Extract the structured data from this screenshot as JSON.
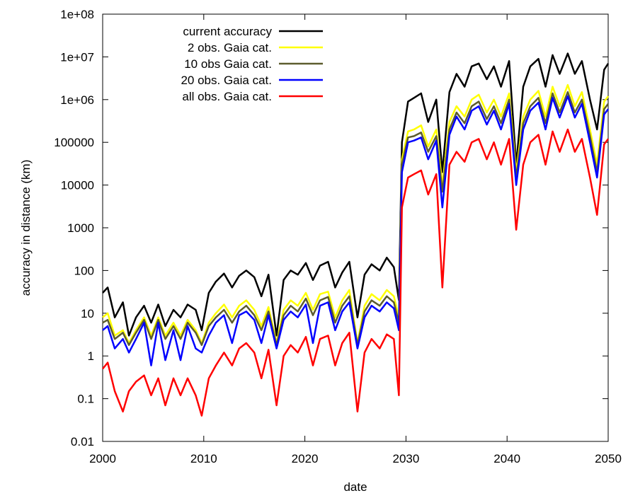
{
  "chart_data": {
    "type": "line",
    "title": "",
    "xlabel": "date",
    "ylabel": "accuracy in distance (km)",
    "xlim": [
      2000,
      2050
    ],
    "ylim": [
      0.01,
      100000000
    ],
    "yscale": "log",
    "grid": false,
    "legend_position": "top-left",
    "x_ticks": [
      "2000",
      "2010",
      "2020",
      "2030",
      "2040",
      "2050"
    ],
    "y_ticks": [
      "0.01",
      "0.1",
      "1",
      "10",
      "100",
      "1000",
      "10000",
      "100000",
      "1e+06",
      "1e+07",
      "1e+08"
    ],
    "series": [
      {
        "name": "current accuracy",
        "color": "#000000",
        "x": [
          2000,
          2000.5,
          2001.2,
          2002,
          2002.6,
          2003.3,
          2004.1,
          2004.8,
          2005.5,
          2006.2,
          2007,
          2007.7,
          2008.4,
          2009.2,
          2009.8,
          2010.5,
          2011.2,
          2012,
          2012.8,
          2013.5,
          2014.2,
          2015,
          2015.7,
          2016.4,
          2017.2,
          2017.9,
          2018.6,
          2019.3,
          2020.1,
          2020.8,
          2021.5,
          2022.3,
          2023,
          2023.7,
          2024.4,
          2025.2,
          2025.9,
          2026.6,
          2027.4,
          2028.1,
          2028.8,
          2029.3,
          2029.6,
          2030.2,
          2030.8,
          2031.5,
          2032.2,
          2033,
          2033.6,
          2034.3,
          2035,
          2035.8,
          2036.5,
          2037.2,
          2038,
          2038.7,
          2039.4,
          2040.2,
          2040.9,
          2041.6,
          2042.3,
          2043.1,
          2043.8,
          2044.5,
          2045.2,
          2046,
          2046.7,
          2047.4,
          2048.2,
          2048.9,
          2049.6,
          2050
        ],
        "y": [
          30,
          40,
          8,
          18,
          3,
          8,
          15,
          6,
          16,
          5,
          12,
          8,
          16,
          12,
          4,
          30,
          55,
          85,
          40,
          75,
          100,
          70,
          25,
          80,
          3,
          60,
          100,
          80,
          150,
          60,
          130,
          160,
          40,
          90,
          160,
          8,
          80,
          140,
          100,
          200,
          120,
          20,
          100000,
          900000,
          1100000,
          1400000,
          300000,
          1000000,
          20000,
          1500000,
          4000000,
          2000000,
          6000000,
          7000000,
          3000000,
          6000000,
          2000000,
          8000000,
          30000,
          2000000,
          6000000,
          9000000,
          2000000,
          11000000,
          4000000,
          12000000,
          4000000,
          8000000,
          1000000,
          200000,
          5000000,
          7000000
        ]
      },
      {
        "name": "2 obs. Gaia cat.",
        "color": "#ffff00",
        "x": [
          2000,
          2000.5,
          2001.2,
          2002,
          2002.6,
          2003.3,
          2004.1,
          2004.8,
          2005.5,
          2006.2,
          2007,
          2007.7,
          2008.4,
          2009.2,
          2009.8,
          2010.5,
          2011.2,
          2012,
          2012.8,
          2013.5,
          2014.2,
          2015,
          2015.7,
          2016.4,
          2017.2,
          2017.9,
          2018.6,
          2019.3,
          2020.1,
          2020.8,
          2021.5,
          2022.3,
          2023,
          2023.7,
          2024.4,
          2025.2,
          2025.9,
          2026.6,
          2027.4,
          2028.1,
          2028.8,
          2029.3,
          2029.6,
          2030.2,
          2030.8,
          2031.5,
          2032.2,
          2033,
          2033.6,
          2034.3,
          2035,
          2035.8,
          2036.5,
          2037.2,
          2038,
          2038.7,
          2039.4,
          2040.2,
          2040.9,
          2041.6,
          2042.3,
          2043.1,
          2043.8,
          2044.5,
          2045.2,
          2046,
          2046.7,
          2047.4,
          2048.2,
          2048.9,
          2049.6,
          2050
        ],
        "y": [
          8,
          10,
          3,
          4,
          2,
          4,
          8,
          3,
          8,
          3,
          6,
          3,
          7,
          4,
          2,
          6,
          10,
          16,
          8,
          15,
          20,
          12,
          5,
          14,
          2,
          12,
          20,
          15,
          30,
          12,
          28,
          32,
          8,
          20,
          35,
          2,
          15,
          28,
          20,
          35,
          25,
          8,
          40000,
          180000,
          200000,
          250000,
          80000,
          200000,
          10000,
          300000,
          700000,
          400000,
          1000000,
          1300000,
          500000,
          1000000,
          400000,
          1400000,
          20000,
          400000,
          1000000,
          1600000,
          400000,
          2000000,
          700000,
          2200000,
          700000,
          1500000,
          200000,
          30000,
          900000,
          1200000
        ]
      },
      {
        "name": "10 obs Gaia cat.",
        "color": "#5c5c2e",
        "x": [
          2000,
          2000.5,
          2001.2,
          2002,
          2002.6,
          2003.3,
          2004.1,
          2004.8,
          2005.5,
          2006.2,
          2007,
          2007.7,
          2008.4,
          2009.2,
          2009.8,
          2010.5,
          2011.2,
          2012,
          2012.8,
          2013.5,
          2014.2,
          2015,
          2015.7,
          2016.4,
          2017.2,
          2017.9,
          2018.6,
          2019.3,
          2020.1,
          2020.8,
          2021.5,
          2022.3,
          2023,
          2023.7,
          2024.4,
          2025.2,
          2025.9,
          2026.6,
          2027.4,
          2028.1,
          2028.8,
          2029.3,
          2029.6,
          2030.2,
          2030.8,
          2031.5,
          2032.2,
          2033,
          2033.6,
          2034.3,
          2035,
          2035.8,
          2036.5,
          2037.2,
          2038,
          2038.7,
          2039.4,
          2040.2,
          2040.9,
          2041.6,
          2042.3,
          2043.1,
          2043.8,
          2044.5,
          2045.2,
          2046,
          2046.7,
          2047.4,
          2048.2,
          2048.9,
          2049.6,
          2050
        ],
        "y": [
          6,
          7,
          2.5,
          3.5,
          1.8,
          3.5,
          7,
          2.5,
          7,
          2.5,
          5,
          2.5,
          6,
          3.5,
          1.8,
          5,
          8,
          12,
          6,
          11,
          15,
          9,
          4,
          11,
          1.8,
          9,
          15,
          11,
          22,
          9,
          20,
          24,
          6,
          15,
          25,
          1.8,
          11,
          20,
          15,
          25,
          18,
          6,
          30000,
          130000,
          140000,
          170000,
          60000,
          140000,
          7000,
          200000,
          500000,
          280000,
          700000,
          900000,
          350000,
          700000,
          280000,
          1000000,
          15000,
          280000,
          700000,
          1100000,
          280000,
          1400000,
          500000,
          1500000,
          500000,
          1000000,
          140000,
          20000,
          600000,
          800000
        ]
      },
      {
        "name": "20 obs. Gaia cat.",
        "color": "#0000ff",
        "x": [
          2000,
          2000.5,
          2001.2,
          2002,
          2002.6,
          2003.3,
          2004.1,
          2004.8,
          2005.5,
          2006.2,
          2007,
          2007.7,
          2008.4,
          2009.2,
          2009.8,
          2010.5,
          2011.2,
          2012,
          2012.8,
          2013.5,
          2014.2,
          2015,
          2015.7,
          2016.4,
          2017.2,
          2017.9,
          2018.6,
          2019.3,
          2020.1,
          2020.8,
          2021.5,
          2022.3,
          2023,
          2023.7,
          2024.4,
          2025.2,
          2025.9,
          2026.6,
          2027.4,
          2028.1,
          2028.8,
          2029.3,
          2029.6,
          2030.2,
          2030.8,
          2031.5,
          2032.2,
          2033,
          2033.6,
          2034.3,
          2035,
          2035.8,
          2036.5,
          2037.2,
          2038,
          2038.7,
          2039.4,
          2040.2,
          2040.9,
          2041.6,
          2042.3,
          2043.1,
          2043.8,
          2044.5,
          2045.2,
          2046,
          2046.7,
          2047.4,
          2048.2,
          2048.9,
          2049.6,
          2050
        ],
        "y": [
          4,
          5,
          1.5,
          2.5,
          1.2,
          2.5,
          6,
          0.6,
          6,
          0.8,
          4,
          0.8,
          5,
          1.5,
          1.2,
          3,
          6,
          9,
          2,
          9,
          11,
          7,
          2,
          9,
          1.5,
          7,
          11,
          8,
          16,
          2,
          15,
          18,
          4,
          11,
          18,
          1.5,
          8,
          15,
          11,
          18,
          13,
          4,
          20000,
          100000,
          110000,
          130000,
          40000,
          110000,
          3000,
          150000,
          400000,
          200000,
          550000,
          700000,
          260000,
          550000,
          200000,
          800000,
          10000,
          200000,
          550000,
          850000,
          200000,
          1100000,
          380000,
          1200000,
          380000,
          800000,
          100000,
          15000,
          450000,
          600000
        ]
      },
      {
        "name": "all obs. Gaia cat.",
        "color": "#ff0000",
        "x": [
          2000,
          2000.5,
          2001.2,
          2002,
          2002.6,
          2003.3,
          2004.1,
          2004.8,
          2005.5,
          2006.2,
          2007,
          2007.7,
          2008.4,
          2009.2,
          2009.8,
          2010.5,
          2011.2,
          2012,
          2012.8,
          2013.5,
          2014.2,
          2015,
          2015.7,
          2016.4,
          2017.2,
          2017.9,
          2018.6,
          2019.3,
          2020.1,
          2020.8,
          2021.5,
          2022.3,
          2023,
          2023.7,
          2024.4,
          2025.2,
          2025.9,
          2026.6,
          2027.4,
          2028.1,
          2028.8,
          2029.3,
          2029.6,
          2030.2,
          2030.8,
          2031.5,
          2032.2,
          2033,
          2033.6,
          2034.3,
          2035,
          2035.8,
          2036.5,
          2037.2,
          2038,
          2038.7,
          2039.4,
          2040.2,
          2040.9,
          2041.6,
          2042.3,
          2043.1,
          2043.8,
          2044.5,
          2045.2,
          2046,
          2046.7,
          2047.4,
          2048.2,
          2048.9,
          2049.6,
          2050
        ],
        "y": [
          0.5,
          0.7,
          0.15,
          0.05,
          0.15,
          0.25,
          0.35,
          0.12,
          0.3,
          0.07,
          0.3,
          0.12,
          0.3,
          0.12,
          0.04,
          0.3,
          0.6,
          1.2,
          0.6,
          1.5,
          2,
          1.2,
          0.3,
          1.4,
          0.07,
          1,
          1.8,
          1.2,
          2.8,
          0.6,
          2.5,
          3,
          0.6,
          2,
          3.5,
          0.05,
          1.2,
          2.5,
          1.5,
          3.2,
          2.5,
          0.12,
          3000,
          15000,
          18000,
          22000,
          6000,
          18000,
          40,
          30000,
          60000,
          35000,
          100000,
          120000,
          40000,
          100000,
          30000,
          120000,
          900,
          30000,
          100000,
          150000,
          30000,
          180000,
          60000,
          200000,
          60000,
          120000,
          15000,
          2000,
          90000,
          120000
        ]
      }
    ]
  }
}
